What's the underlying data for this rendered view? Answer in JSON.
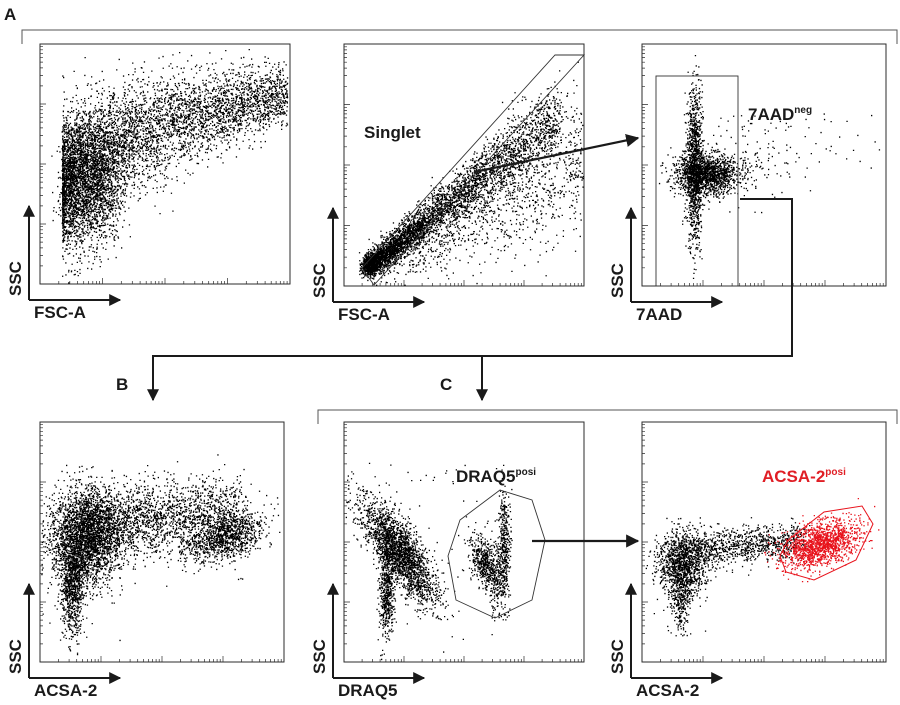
{
  "panel_letters": {
    "a": "A",
    "b": "B",
    "c": "C"
  },
  "plots": [
    {
      "id": "fsc-ssc",
      "xlabel": "FSC-A",
      "ylabel": "SSC"
    },
    {
      "id": "singlet",
      "xlabel": "FSC-A",
      "ylabel": "SSC",
      "gate_label": "Singlet"
    },
    {
      "id": "viability",
      "xlabel": "7AAD",
      "ylabel": "SSC",
      "gate_label": "7AAD",
      "gate_sup": "neg"
    },
    {
      "id": "acsa-ungated",
      "xlabel": "ACSA-2",
      "ylabel": "SSC"
    },
    {
      "id": "draq5",
      "xlabel": "DRAQ5",
      "ylabel": "SSC",
      "gate_label": "DRAQ5",
      "gate_sup": "posi"
    },
    {
      "id": "acsa-gated",
      "xlabel": "ACSA-2",
      "ylabel": "SSC",
      "gate_label": "ACSA-2",
      "gate_sup": "posi"
    }
  ],
  "colors": {
    "events": "#000000",
    "positive_events": "#e8121b",
    "gate_label_positive": "#e01e25",
    "axis": "#2b2b2b"
  }
}
